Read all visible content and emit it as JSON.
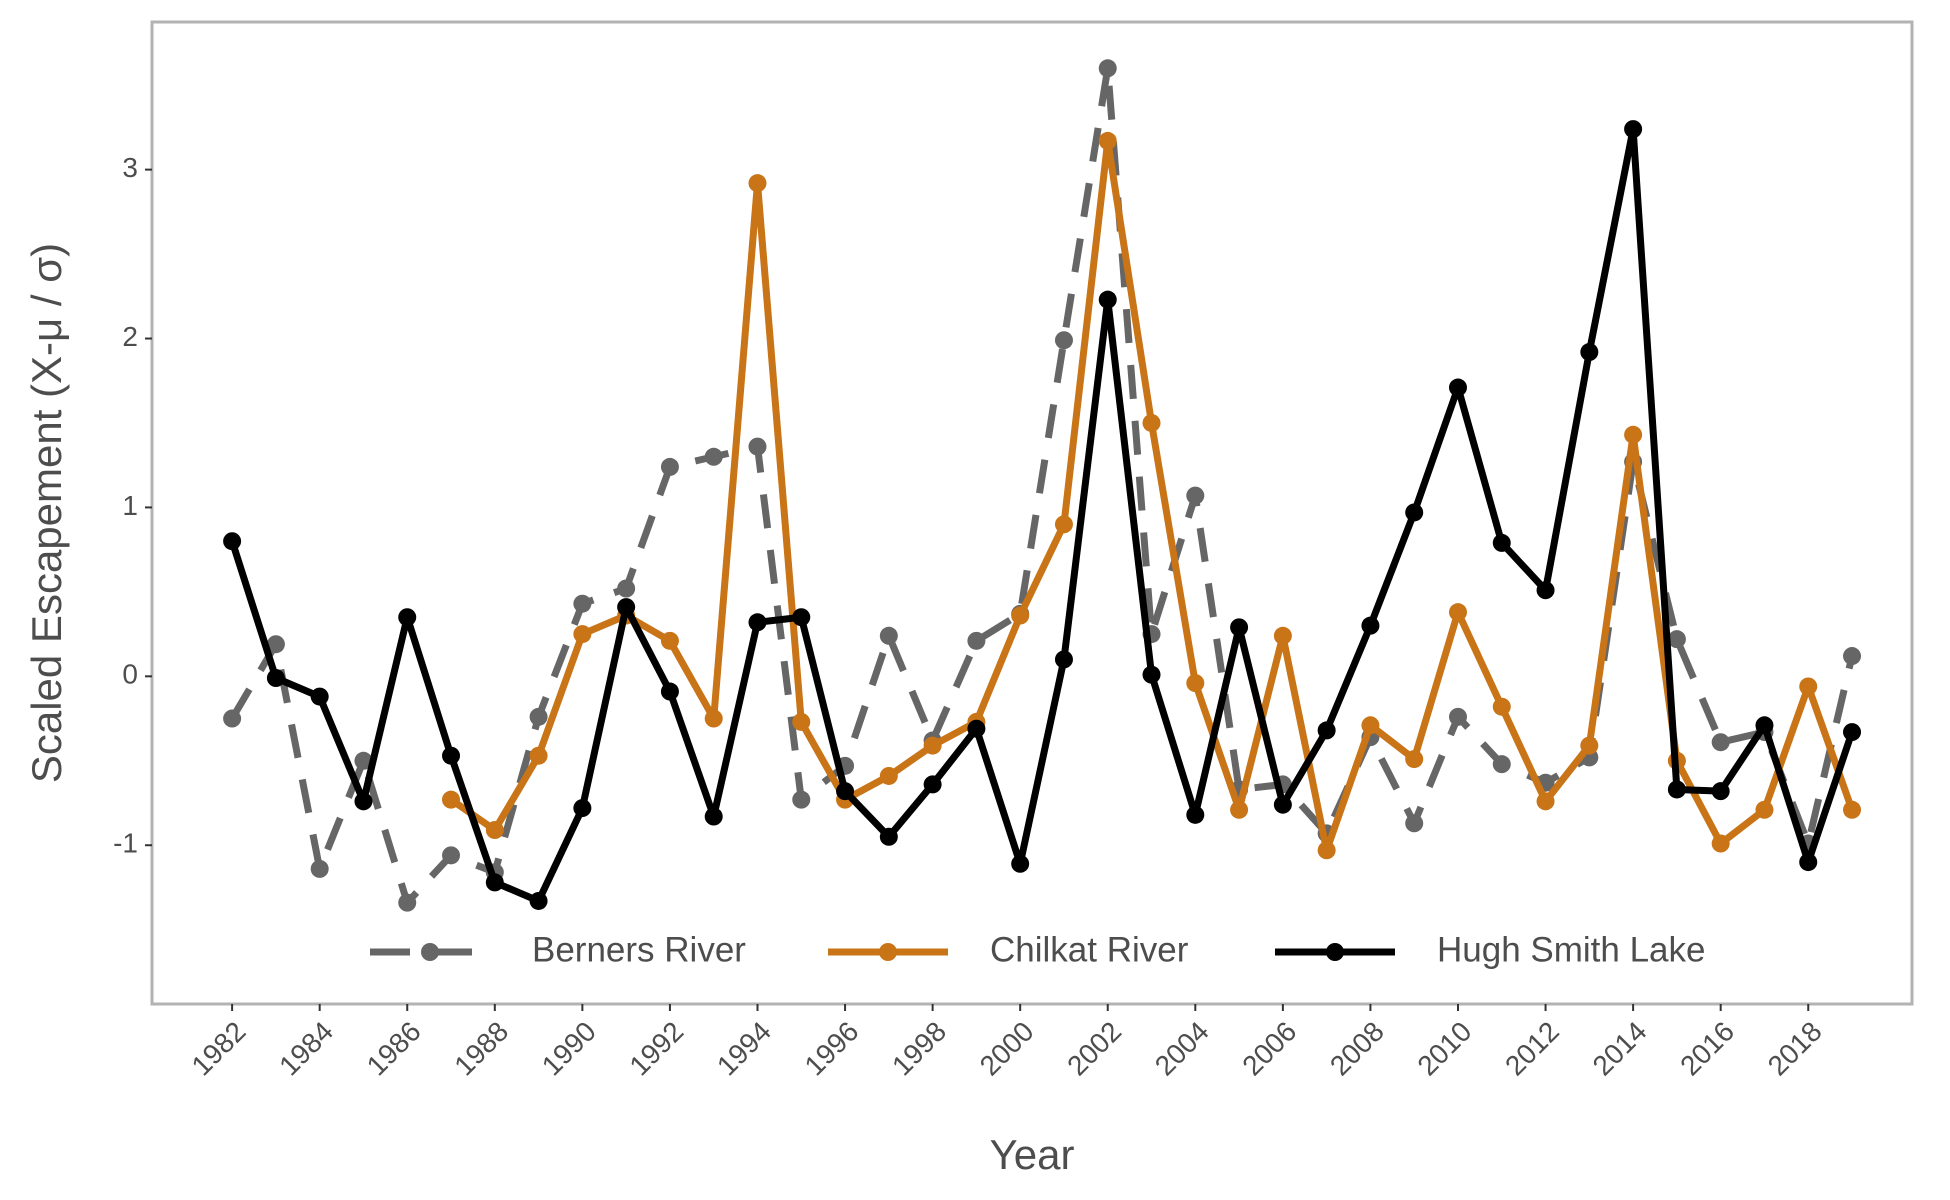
{
  "chart_data": {
    "type": "line",
    "x_label": "Year",
    "y_label": "Scaled Escapement (X-μ / σ)",
    "x": [
      1982,
      1983,
      1984,
      1985,
      1986,
      1987,
      1988,
      1989,
      1990,
      1991,
      1992,
      1993,
      1994,
      1995,
      1996,
      1997,
      1998,
      1999,
      2000,
      2001,
      2002,
      2003,
      2004,
      2005,
      2006,
      2007,
      2008,
      2009,
      2010,
      2011,
      2012,
      2013,
      2014,
      2015,
      2016,
      2017,
      2018,
      2019
    ],
    "series": [
      {
        "name": "Berners River",
        "color": "#666666",
        "dashed": true,
        "values": [
          -0.25,
          0.19,
          -1.14,
          -0.5,
          -1.34,
          -1.06,
          -1.16,
          -0.24,
          0.43,
          0.52,
          1.24,
          1.3,
          1.36,
          -0.73,
          -0.53,
          0.24,
          -0.38,
          0.21,
          0.37,
          1.99,
          3.6,
          0.25,
          1.07,
          -0.67,
          -0.64,
          -0.93,
          -0.36,
          -0.87,
          -0.24,
          -0.52,
          -0.63,
          -0.48,
          1.27,
          0.22,
          -0.39,
          -0.33,
          -0.99,
          0.12
        ]
      },
      {
        "name": "Chilkat River",
        "color": "#c87417",
        "dashed": false,
        "values": [
          null,
          null,
          null,
          null,
          null,
          -0.73,
          -0.91,
          -0.47,
          0.25,
          0.36,
          0.21,
          -0.25,
          2.92,
          -0.27,
          -0.73,
          -0.59,
          -0.41,
          -0.27,
          0.36,
          0.9,
          3.17,
          1.5,
          -0.04,
          -0.79,
          0.24,
          -1.03,
          -0.29,
          -0.49,
          0.38,
          -0.18,
          -0.74,
          -0.41,
          1.43,
          -0.5,
          -0.99,
          -0.79,
          -0.06,
          -0.79
        ]
      },
      {
        "name": "Hugh Smith Lake",
        "color": "#000000",
        "dashed": false,
        "values": [
          0.8,
          -0.01,
          -0.12,
          -0.74,
          0.35,
          -0.47,
          -1.22,
          -1.33,
          -0.78,
          0.41,
          -0.09,
          -0.83,
          0.32,
          0.35,
          -0.68,
          -0.95,
          -0.64,
          -0.31,
          -1.11,
          0.1,
          2.23,
          0.01,
          -0.82,
          0.29,
          -0.76,
          -0.32,
          0.3,
          0.97,
          1.71,
          0.79,
          0.51,
          1.92,
          3.24,
          -0.67,
          -0.68,
          -0.29,
          -1.1,
          -0.33
        ]
      }
    ],
    "xlim": [
      1980.17,
      2020.37
    ],
    "xticks": [
      1982,
      1984,
      1986,
      1988,
      1990,
      1992,
      1994,
      1996,
      1998,
      2000,
      2002,
      2004,
      2006,
      2008,
      2010,
      2012,
      2014,
      2016,
      2018
    ],
    "ylim": [
      -1.94,
      3.874
    ],
    "yticks": [
      -1,
      0,
      1,
      2,
      3
    ],
    "grid": false,
    "legend": "bottom"
  }
}
